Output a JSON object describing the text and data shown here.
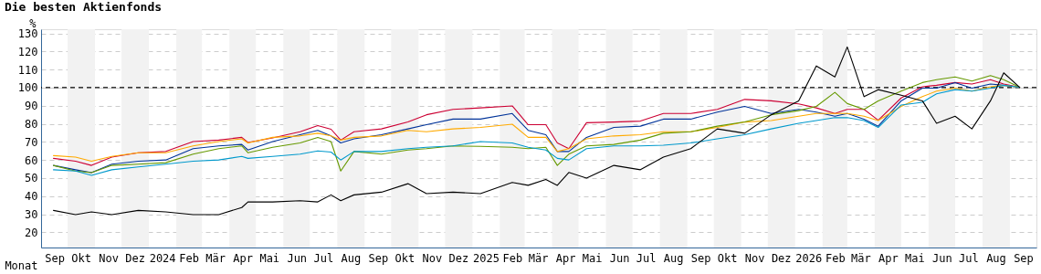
{
  "chart_data": {
    "type": "line",
    "title": "Die besten Aktienfonds",
    "xlabel": "Monat",
    "ylabel": "%",
    "x": [
      "2023-09-15",
      "2023-10-10",
      "2023-10-28",
      "2023-11-20",
      "2023-12-20",
      "2024-01-20",
      "2024-02-20",
      "2024-03-20",
      "2024-04-15",
      "2024-04-22",
      "2024-05-20",
      "2024-06-20",
      "2024-07-10",
      "2024-07-25",
      "2024-08-05",
      "2024-08-20",
      "2024-09-20",
      "2024-10-20",
      "2024-11-10",
      "2024-12-10",
      "2025-01-10",
      "2025-02-15",
      "2025-03-05",
      "2025-03-25",
      "2025-04-07",
      "2025-04-20",
      "2025-05-10",
      "2025-06-10",
      "2025-07-10",
      "2025-08-05",
      "2025-09-05",
      "2025-10-05",
      "2025-11-05",
      "2025-12-05",
      "2026-01-05",
      "2026-01-25",
      "2026-02-15",
      "2026-03-01",
      "2026-03-20",
      "2026-04-05",
      "2026-05-01",
      "2026-05-25",
      "2026-06-10",
      "2026-07-01",
      "2026-07-20",
      "2026-08-10",
      "2026-08-25",
      "2026-09-12"
    ],
    "series": [
      {
        "color": "#cc0033",
        "values": [
          60.9,
          59.3,
          57,
          61.6,
          64,
          64.7,
          70.2,
          71,
          72.5,
          69.7,
          72.2,
          75.6,
          79,
          77,
          71,
          75.6,
          77.2,
          81,
          85,
          88,
          88.8,
          89.9,
          79.5,
          79.5,
          69.4,
          66.3,
          80.6,
          81,
          81.5,
          85.7,
          85.7,
          88,
          93.5,
          92.7,
          91,
          88.8,
          85.7,
          88,
          88,
          82,
          94.3,
          100.5,
          101.3,
          102.8,
          102,
          104.4,
          102,
          100.2
        ]
      },
      {
        "color": "#003399",
        "values": [
          57,
          54.6,
          53,
          57.7,
          59.3,
          60,
          66.3,
          67.8,
          68.6,
          65.5,
          70.2,
          74,
          76.4,
          73.3,
          69.4,
          71.7,
          74,
          77.2,
          79.5,
          82.6,
          82.6,
          85.7,
          76.4,
          74,
          64.7,
          64.7,
          72.5,
          78,
          78.7,
          82.6,
          82.6,
          86.5,
          89.6,
          85.7,
          88,
          86.5,
          84.2,
          85.7,
          82.6,
          78.7,
          92.7,
          99.7,
          99.7,
          102.8,
          99.7,
          102,
          101.3,
          100.2
        ]
      },
      {
        "color": "#ffaa00",
        "values": [
          62.4,
          61.6,
          59.3,
          62,
          64,
          64,
          67.8,
          70.2,
          71.7,
          69.4,
          72.5,
          73.3,
          74.8,
          73.3,
          71,
          72.5,
          73.3,
          76.4,
          75.6,
          77.2,
          78,
          79.8,
          72.5,
          72.5,
          64.7,
          66.3,
          71.7,
          73.3,
          74,
          75.6,
          75.6,
          78,
          81,
          81.8,
          84.2,
          85.7,
          85.7,
          85.7,
          84.2,
          81.8,
          89.6,
          95,
          98.1,
          99.7,
          98.1,
          100.5,
          101.3,
          100.2
        ]
      },
      {
        "color": "#669900",
        "values": [
          57,
          53.9,
          53,
          57,
          57.7,
          58.5,
          63.2,
          66.3,
          67.8,
          64,
          67,
          69.4,
          72.5,
          70.2,
          53.9,
          64.7,
          63.2,
          65.5,
          66.3,
          67.8,
          67.5,
          67,
          66.3,
          67,
          57,
          63.2,
          67.8,
          68.6,
          71,
          74.8,
          75.6,
          78.7,
          81,
          85,
          87.3,
          89.6,
          97.4,
          91.2,
          88,
          92.7,
          98.1,
          102.8,
          104.4,
          105.9,
          103.6,
          106.7,
          104.4,
          100.2
        ]
      },
      {
        "color": "#0099cc",
        "values": [
          54.6,
          53.9,
          51.5,
          54.6,
          56.2,
          57.7,
          59.3,
          60,
          62,
          60.9,
          62,
          63.2,
          65,
          64.4,
          60,
          64.7,
          64.7,
          66.3,
          67,
          67.8,
          70.2,
          69.4,
          67,
          65.5,
          60.9,
          60,
          66.3,
          67.8,
          67.8,
          68.2,
          69.4,
          71.7,
          74,
          77.2,
          80.3,
          81.8,
          83.4,
          83.4,
          81.8,
          78,
          90.4,
          91.9,
          96.6,
          98.9,
          98.1,
          99.7,
          101.3,
          100.2
        ]
      },
      {
        "color": "#000000",
        "values": [
          32.1,
          29.8,
          31.3,
          29.8,
          32.1,
          31.3,
          29.8,
          29.8,
          33.7,
          36.8,
          36.8,
          37.5,
          36.8,
          40.7,
          37.5,
          40.7,
          42.2,
          46.9,
          41.4,
          42.2,
          41.4,
          47.6,
          46,
          49.2,
          46,
          53.1,
          50,
          57,
          54.6,
          61.6,
          66.3,
          77.2,
          74.8,
          85,
          92.7,
          112,
          105.9,
          122.5,
          95,
          98.9,
          95.8,
          92.7,
          80.3,
          84.2,
          77.2,
          92.7,
          108.2,
          100.2
        ]
      }
    ],
    "xlim": [
      "2023-09-01",
      "2026-10-01"
    ],
    "xticks": [
      {
        "value": "2023-09-16",
        "label": "Sep"
      },
      {
        "value": "2023-10-16",
        "label": "Okt"
      },
      {
        "value": "2023-11-16",
        "label": "Nov"
      },
      {
        "value": "2023-12-16",
        "label": "Dez"
      },
      {
        "value": "2024-01-16",
        "label": "2024"
      },
      {
        "value": "2024-02-15",
        "label": "Feb"
      },
      {
        "value": "2024-03-16",
        "label": "Mär"
      },
      {
        "value": "2024-04-16",
        "label": "Apr"
      },
      {
        "value": "2024-05-16",
        "label": "Mai"
      },
      {
        "value": "2024-06-16",
        "label": "Jun"
      },
      {
        "value": "2024-07-16",
        "label": "Jul"
      },
      {
        "value": "2024-08-16",
        "label": "Aug"
      },
      {
        "value": "2024-09-16",
        "label": "Sep"
      },
      {
        "value": "2024-10-16",
        "label": "Okt"
      },
      {
        "value": "2024-11-16",
        "label": "Nov"
      },
      {
        "value": "2024-12-16",
        "label": "Dez"
      },
      {
        "value": "2025-01-16",
        "label": "2025"
      },
      {
        "value": "2025-02-15",
        "label": "Feb"
      },
      {
        "value": "2025-03-16",
        "label": "Mär"
      },
      {
        "value": "2025-04-16",
        "label": "Apr"
      },
      {
        "value": "2025-05-16",
        "label": "Mai"
      },
      {
        "value": "2025-06-16",
        "label": "Jun"
      },
      {
        "value": "2025-07-16",
        "label": "Jul"
      },
      {
        "value": "2025-08-16",
        "label": "Aug"
      },
      {
        "value": "2025-09-16",
        "label": "Sep"
      },
      {
        "value": "2025-10-16",
        "label": "Okt"
      },
      {
        "value": "2025-11-16",
        "label": "Nov"
      },
      {
        "value": "2025-12-16",
        "label": "Dez"
      },
      {
        "value": "2026-01-16",
        "label": "2026"
      },
      {
        "value": "2026-02-15",
        "label": "Feb"
      },
      {
        "value": "2026-03-16",
        "label": "Mär"
      },
      {
        "value": "2026-04-16",
        "label": "Apr"
      },
      {
        "value": "2026-05-16",
        "label": "Mai"
      },
      {
        "value": "2026-06-16",
        "label": "Jun"
      },
      {
        "value": "2026-07-16",
        "label": "Jul"
      },
      {
        "value": "2026-08-16",
        "label": "Aug"
      },
      {
        "value": "2026-09-16",
        "label": "Sep"
      }
    ],
    "ylim": [
      11.6,
      132.3
    ],
    "yticks": [
      20,
      30,
      40,
      50,
      60,
      70,
      80,
      90,
      100,
      110,
      120,
      130
    ],
    "grid": "y",
    "ref_lines": [
      {
        "axis": "y",
        "value": 100,
        "color": "#000000",
        "line_style": "dashed"
      }
    ],
    "bands": [
      {
        "axis": "x",
        "from": "2023-10-01",
        "to": "2023-11-01",
        "color": "#f2f2f2"
      },
      {
        "axis": "x",
        "from": "2023-12-01",
        "to": "2024-01-01",
        "color": "#f2f2f2"
      },
      {
        "axis": "x",
        "from": "2024-02-01",
        "to": "2024-03-01",
        "color": "#f2f2f2"
      },
      {
        "axis": "x",
        "from": "2024-04-01",
        "to": "2024-05-01",
        "color": "#f2f2f2"
      },
      {
        "axis": "x",
        "from": "2024-06-01",
        "to": "2024-07-01",
        "color": "#f2f2f2"
      },
      {
        "axis": "x",
        "from": "2024-08-01",
        "to": "2024-09-01",
        "color": "#f2f2f2"
      },
      {
        "axis": "x",
        "from": "2024-10-01",
        "to": "2024-11-01",
        "color": "#f2f2f2"
      },
      {
        "axis": "x",
        "from": "2024-12-01",
        "to": "2025-01-01",
        "color": "#f2f2f2"
      },
      {
        "axis": "x",
        "from": "2025-02-01",
        "to": "2025-03-01",
        "color": "#f2f2f2"
      },
      {
        "axis": "x",
        "from": "2025-04-01",
        "to": "2025-05-01",
        "color": "#f2f2f2"
      },
      {
        "axis": "x",
        "from": "2025-06-01",
        "to": "2025-07-01",
        "color": "#f2f2f2"
      },
      {
        "axis": "x",
        "from": "2025-08-01",
        "to": "2025-09-01",
        "color": "#f2f2f2"
      },
      {
        "axis": "x",
        "from": "2025-10-01",
        "to": "2025-11-01",
        "color": "#f2f2f2"
      },
      {
        "axis": "x",
        "from": "2025-12-01",
        "to": "2026-01-01",
        "color": "#f2f2f2"
      },
      {
        "axis": "x",
        "from": "2026-02-01",
        "to": "2026-03-01",
        "color": "#f2f2f2"
      },
      {
        "axis": "x",
        "from": "2026-04-01",
        "to": "2026-05-01",
        "color": "#f2f2f2"
      },
      {
        "axis": "x",
        "from": "2026-06-01",
        "to": "2026-07-01",
        "color": "#f2f2f2"
      },
      {
        "axis": "x",
        "from": "2026-08-01",
        "to": "2026-09-01",
        "color": "#f2f2f2"
      }
    ],
    "line_style": "solid",
    "marker": "none",
    "legend": false
  }
}
